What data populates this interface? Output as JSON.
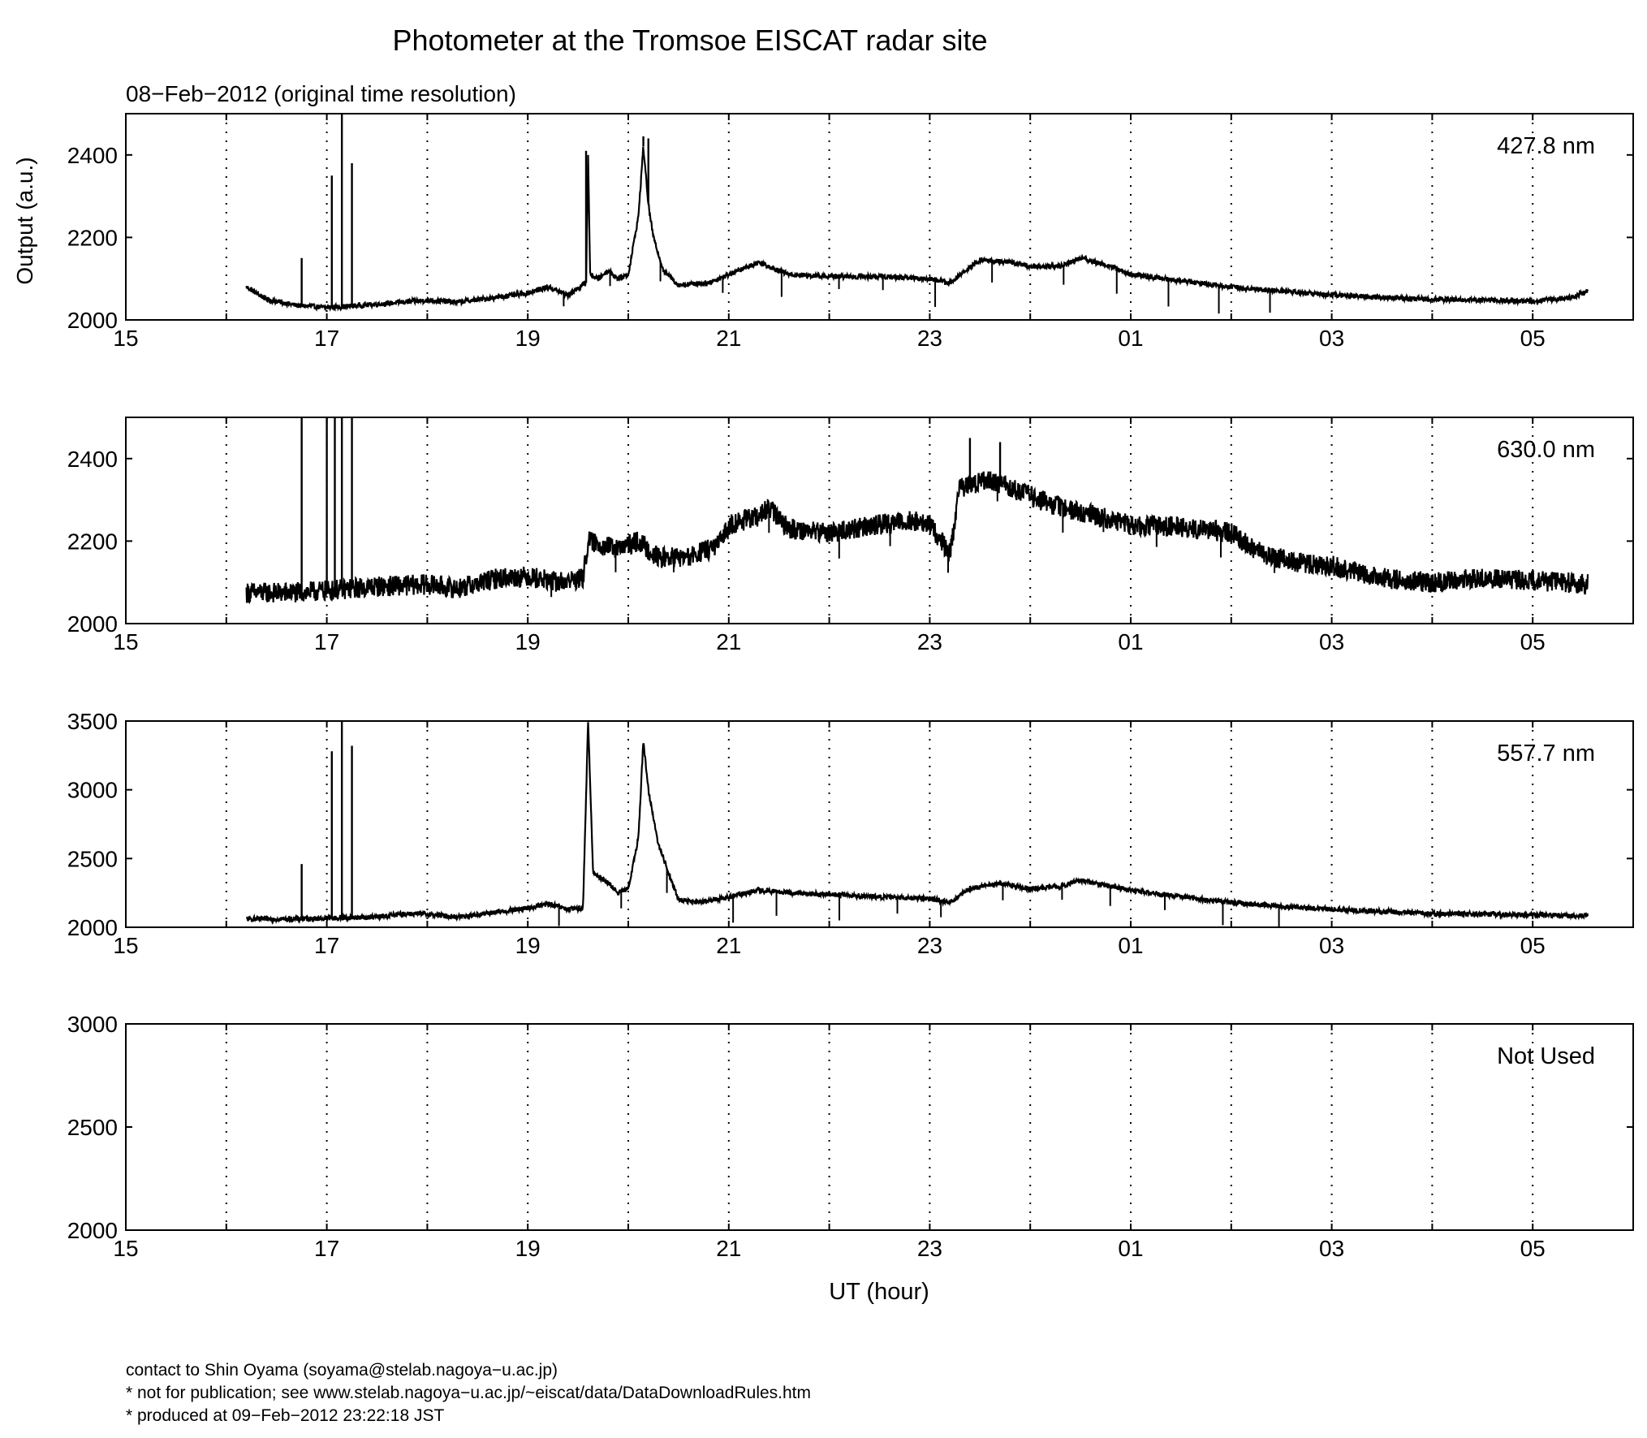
{
  "figure": {
    "title": "Photometer at the Tromsoe EISCAT radar site",
    "subtitle": "08−Feb−2012 (original time resolution)",
    "ylabel": "Output (a.u.)",
    "xlabel": "UT (hour)"
  },
  "footer": {
    "contact": "contact to Shin Oyama (soyama@stelab.nagoya−u.ac.jp)",
    "note": "* not for publication; see www.stelab.nagoya−u.ac.jp/~eiscat/data/DataDownloadRules.htm",
    "produced": "* produced at 09−Feb−2012 23:22:18 JST"
  },
  "chart_data": [
    {
      "type": "line",
      "label": "427.8 nm",
      "xlim": [
        15,
        30
      ],
      "ylim": [
        2000,
        2500
      ],
      "xticks": [
        "15",
        "17",
        "19",
        "21",
        "23",
        "01",
        "03",
        "05"
      ],
      "yticks": [
        2000,
        2200,
        2400
      ],
      "grid": "vertical dotted",
      "x": [
        16.2,
        16.4,
        16.7,
        17.0,
        17.5,
        18.0,
        18.3,
        18.7,
        19.0,
        19.2,
        19.4,
        19.58,
        19.6,
        19.62,
        19.7,
        19.8,
        19.9,
        20.0,
        20.1,
        20.15,
        20.2,
        20.25,
        20.35,
        20.5,
        20.8,
        21.0,
        21.3,
        21.6,
        22.0,
        22.5,
        23.0,
        23.2,
        23.5,
        23.8,
        24.0,
        24.3,
        24.5,
        24.8,
        25.0,
        25.5,
        26.0,
        26.5,
        27.0,
        27.5,
        28.0,
        28.5,
        29.0,
        29.4,
        29.55
      ],
      "y": [
        2080,
        2050,
        2035,
        2030,
        2038,
        2048,
        2043,
        2055,
        2065,
        2080,
        2060,
        2090,
        2400,
        2110,
        2100,
        2120,
        2100,
        2110,
        2250,
        2420,
        2280,
        2200,
        2120,
        2085,
        2090,
        2110,
        2140,
        2110,
        2105,
        2105,
        2100,
        2090,
        2145,
        2140,
        2130,
        2130,
        2150,
        2130,
        2110,
        2095,
        2080,
        2070,
        2060,
        2055,
        2050,
        2048,
        2045,
        2055,
        2070
      ],
      "spikes": [
        {
          "x": 16.75,
          "y": 2150
        },
        {
          "x": 17.05,
          "y": 2350
        },
        {
          "x": 17.15,
          "y": 2500
        },
        {
          "x": 17.25,
          "y": 2380
        },
        {
          "x": 19.58,
          "y": 2410
        },
        {
          "x": 20.15,
          "y": 2445
        },
        {
          "x": 20.2,
          "y": 2440
        }
      ]
    },
    {
      "type": "line",
      "label": "630.0 nm",
      "xlim": [
        15,
        30
      ],
      "ylim": [
        2000,
        2500
      ],
      "xticks": [
        "15",
        "17",
        "19",
        "21",
        "23",
        "01",
        "03",
        "05"
      ],
      "yticks": [
        2000,
        2200,
        2400
      ],
      "grid": "vertical dotted",
      "x": [
        16.2,
        16.7,
        17.0,
        17.5,
        18.0,
        18.3,
        18.7,
        19.0,
        19.3,
        19.55,
        19.6,
        19.9,
        20.1,
        20.3,
        20.6,
        20.9,
        21.0,
        21.3,
        21.4,
        21.6,
        22.0,
        22.5,
        22.8,
        23.0,
        23.2,
        23.3,
        23.6,
        23.9,
        24.2,
        24.5,
        25.0,
        25.5,
        26.0,
        26.3,
        26.6,
        27.0,
        27.5,
        28.0,
        28.5,
        29.0,
        29.3,
        29.55
      ],
      "y": [
        2075,
        2075,
        2080,
        2090,
        2095,
        2085,
        2110,
        2115,
        2100,
        2110,
        2200,
        2180,
        2200,
        2160,
        2160,
        2190,
        2240,
        2260,
        2280,
        2230,
        2220,
        2240,
        2250,
        2240,
        2170,
        2330,
        2350,
        2320,
        2290,
        2270,
        2240,
        2235,
        2220,
        2170,
        2150,
        2140,
        2110,
        2100,
        2110,
        2105,
        2100,
        2095
      ],
      "band_halfwidth": 25,
      "spikes": [
        {
          "x": 16.75,
          "y": 2500
        },
        {
          "x": 17.0,
          "y": 2500
        },
        {
          "x": 17.08,
          "y": 2500
        },
        {
          "x": 17.15,
          "y": 2500
        },
        {
          "x": 17.25,
          "y": 2500
        },
        {
          "x": 23.4,
          "y": 2450
        },
        {
          "x": 23.7,
          "y": 2440
        }
      ]
    },
    {
      "type": "line",
      "label": "557.7 nm",
      "xlim": [
        15,
        30
      ],
      "ylim": [
        2000,
        3500
      ],
      "xticks": [
        "15",
        "17",
        "19",
        "21",
        "23",
        "01",
        "03",
        "05"
      ],
      "yticks": [
        2000,
        2500,
        3000,
        3500
      ],
      "grid": "vertical dotted",
      "x": [
        16.2,
        16.7,
        17.0,
        17.5,
        17.8,
        18.0,
        18.3,
        18.7,
        19.0,
        19.2,
        19.4,
        19.55,
        19.6,
        19.65,
        19.8,
        19.9,
        20.0,
        20.1,
        20.15,
        20.2,
        20.3,
        20.4,
        20.5,
        20.7,
        21.0,
        21.3,
        21.6,
        22.0,
        22.5,
        23.0,
        23.2,
        23.4,
        23.7,
        24.0,
        24.3,
        24.5,
        24.8,
        25.0,
        25.5,
        26.0,
        26.5,
        27.0,
        27.5,
        28.0,
        28.5,
        29.0,
        29.55
      ],
      "y": [
        2060,
        2060,
        2065,
        2075,
        2100,
        2095,
        2075,
        2110,
        2140,
        2170,
        2130,
        2140,
        3500,
        2400,
        2320,
        2250,
        2280,
        2650,
        3350,
        3000,
        2600,
        2400,
        2200,
        2180,
        2220,
        2270,
        2250,
        2240,
        2220,
        2210,
        2180,
        2280,
        2320,
        2280,
        2300,
        2340,
        2300,
        2270,
        2220,
        2180,
        2150,
        2130,
        2115,
        2100,
        2095,
        2090,
        2085
      ],
      "spikes": [
        {
          "x": 16.75,
          "y": 2460
        },
        {
          "x": 17.05,
          "y": 3280
        },
        {
          "x": 17.15,
          "y": 3500
        },
        {
          "x": 17.25,
          "y": 3320
        }
      ]
    },
    {
      "type": "line",
      "label": "Not Used",
      "xlim": [
        15,
        30
      ],
      "ylim": [
        2000,
        3000
      ],
      "xticks": [
        "15",
        "17",
        "19",
        "21",
        "23",
        "01",
        "03",
        "05"
      ],
      "yticks": [
        2000,
        2500,
        3000
      ],
      "grid": "vertical dotted",
      "x": [],
      "y": []
    }
  ]
}
